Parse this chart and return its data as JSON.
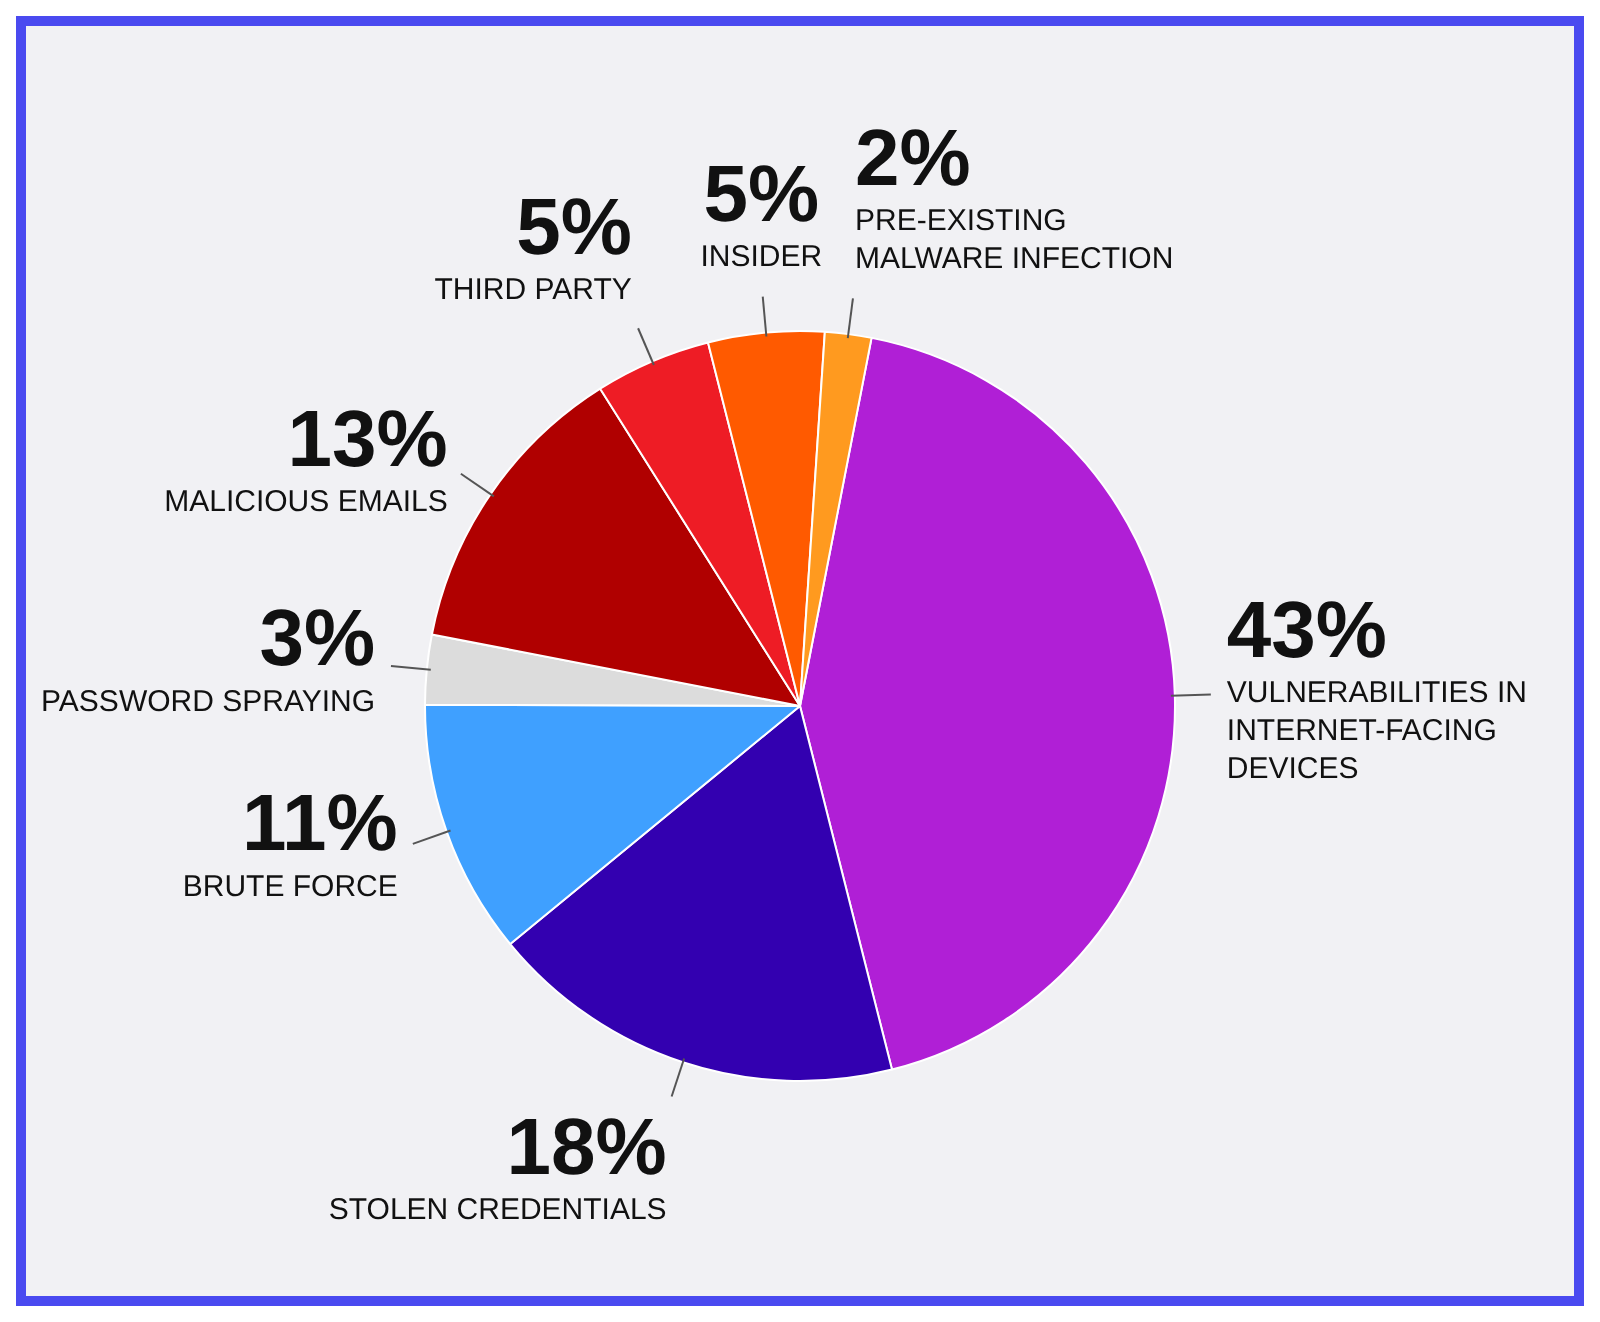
{
  "chart_data": {
    "type": "pie",
    "categories": [
      "VULNERABILITIES IN INTERNET-FACING DEVICES",
      "STOLEN CREDENTIALS",
      "BRUTE FORCE",
      "PASSWORD SPRAYING",
      "MALICIOUS EMAILS",
      "THIRD PARTY",
      "INSIDER",
      "PRE-EXISTING MALWARE INFECTION"
    ],
    "values": [
      43,
      18,
      11,
      3,
      13,
      5,
      5,
      2
    ],
    "value_labels": [
      "43%",
      "18%",
      "11%",
      "3%",
      "13%",
      "5%",
      "5%",
      "2%"
    ],
    "colors": [
      "#b01fd6",
      "#3300b0",
      "#3fa0ff",
      "#dcdcdc",
      "#b00000",
      "#ee1c25",
      "#ff5a00",
      "#ff9a1f"
    ],
    "legend": false
  }
}
